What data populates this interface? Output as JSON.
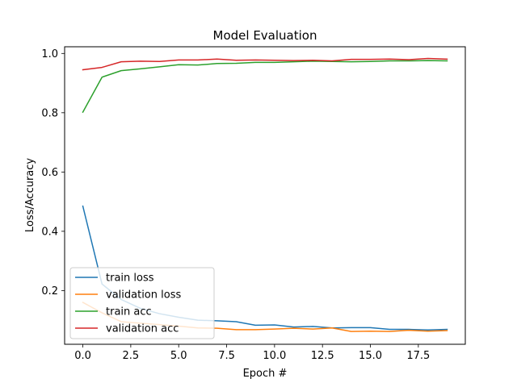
{
  "chart_data": {
    "type": "line",
    "title": "Model Evaluation",
    "xlabel": "Epoch #",
    "ylabel": "Loss/Accuracy",
    "xlim": [
      -0.95,
      19.95
    ],
    "ylim": [
      0.0188,
      1.0226
    ],
    "x": [
      0,
      1,
      2,
      3,
      4,
      5,
      6,
      7,
      8,
      9,
      10,
      11,
      12,
      13,
      14,
      15,
      16,
      17,
      18,
      19
    ],
    "xticks": [
      0.0,
      2.5,
      5.0,
      7.5,
      10.0,
      12.5,
      15.0,
      17.5
    ],
    "xtick_labels": [
      "0.0",
      "2.5",
      "5.0",
      "7.5",
      "10.0",
      "12.5",
      "15.0",
      "17.5"
    ],
    "yticks": [
      0.2,
      0.4,
      0.6,
      0.8,
      1.0
    ],
    "ytick_labels": [
      "0.2",
      "0.4",
      "0.6",
      "0.8",
      "1.0"
    ],
    "grid": false,
    "legend_position": "lower-left",
    "series": [
      {
        "name": "train loss",
        "color": "#1f77b4",
        "values": [
          0.485,
          0.222,
          0.17,
          0.14,
          0.122,
          0.11,
          0.1,
          0.098,
          0.095,
          0.083,
          0.084,
          0.077,
          0.079,
          0.074,
          0.075,
          0.075,
          0.069,
          0.069,
          0.067,
          0.069
        ]
      },
      {
        "name": "validation loss",
        "color": "#ff7f0e",
        "values": [
          0.16,
          0.125,
          0.095,
          0.09,
          0.085,
          0.08,
          0.074,
          0.073,
          0.068,
          0.068,
          0.07,
          0.073,
          0.07,
          0.074,
          0.062,
          0.063,
          0.062,
          0.066,
          0.063,
          0.065
        ]
      },
      {
        "name": "train acc",
        "color": "#2ca02c",
        "values": [
          0.802,
          0.92,
          0.942,
          0.948,
          0.955,
          0.962,
          0.961,
          0.966,
          0.967,
          0.97,
          0.97,
          0.972,
          0.974,
          0.973,
          0.972,
          0.973,
          0.975,
          0.975,
          0.976,
          0.975
        ]
      },
      {
        "name": "validation acc",
        "color": "#d62728",
        "values": [
          0.945,
          0.953,
          0.972,
          0.974,
          0.973,
          0.978,
          0.978,
          0.981,
          0.977,
          0.978,
          0.977,
          0.976,
          0.977,
          0.975,
          0.98,
          0.98,
          0.981,
          0.979,
          0.983,
          0.981
        ]
      }
    ]
  }
}
